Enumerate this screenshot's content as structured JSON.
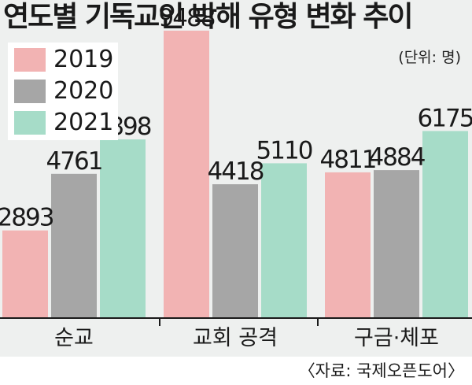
{
  "title": "연도별 기독교인 박해 유형 변화 추이",
  "unit": "(단위: 명)",
  "source": "〈자료: 국제오픈도어〉",
  "colors": {
    "2019": "#f2b3b3",
    "2020": "#a6a6a6",
    "2021": "#a6dcc8",
    "panel": "#eef0ef"
  },
  "chart_data": {
    "type": "bar",
    "title": "연도별 기독교인 박해 유형 변화 추이",
    "unit": "(단위: 명)",
    "categories": [
      "순교",
      "교회 공격",
      "구금·체포"
    ],
    "series": [
      {
        "name": "2019",
        "values": [
          2893,
          9488,
          4811
        ]
      },
      {
        "name": "2020",
        "values": [
          4761,
          4418,
          4884
        ]
      },
      {
        "name": "2021",
        "values": [
          5898,
          5110,
          6175
        ]
      }
    ],
    "ylim": [
      0,
      10500
    ],
    "legend": "top-left",
    "grid": false
  }
}
